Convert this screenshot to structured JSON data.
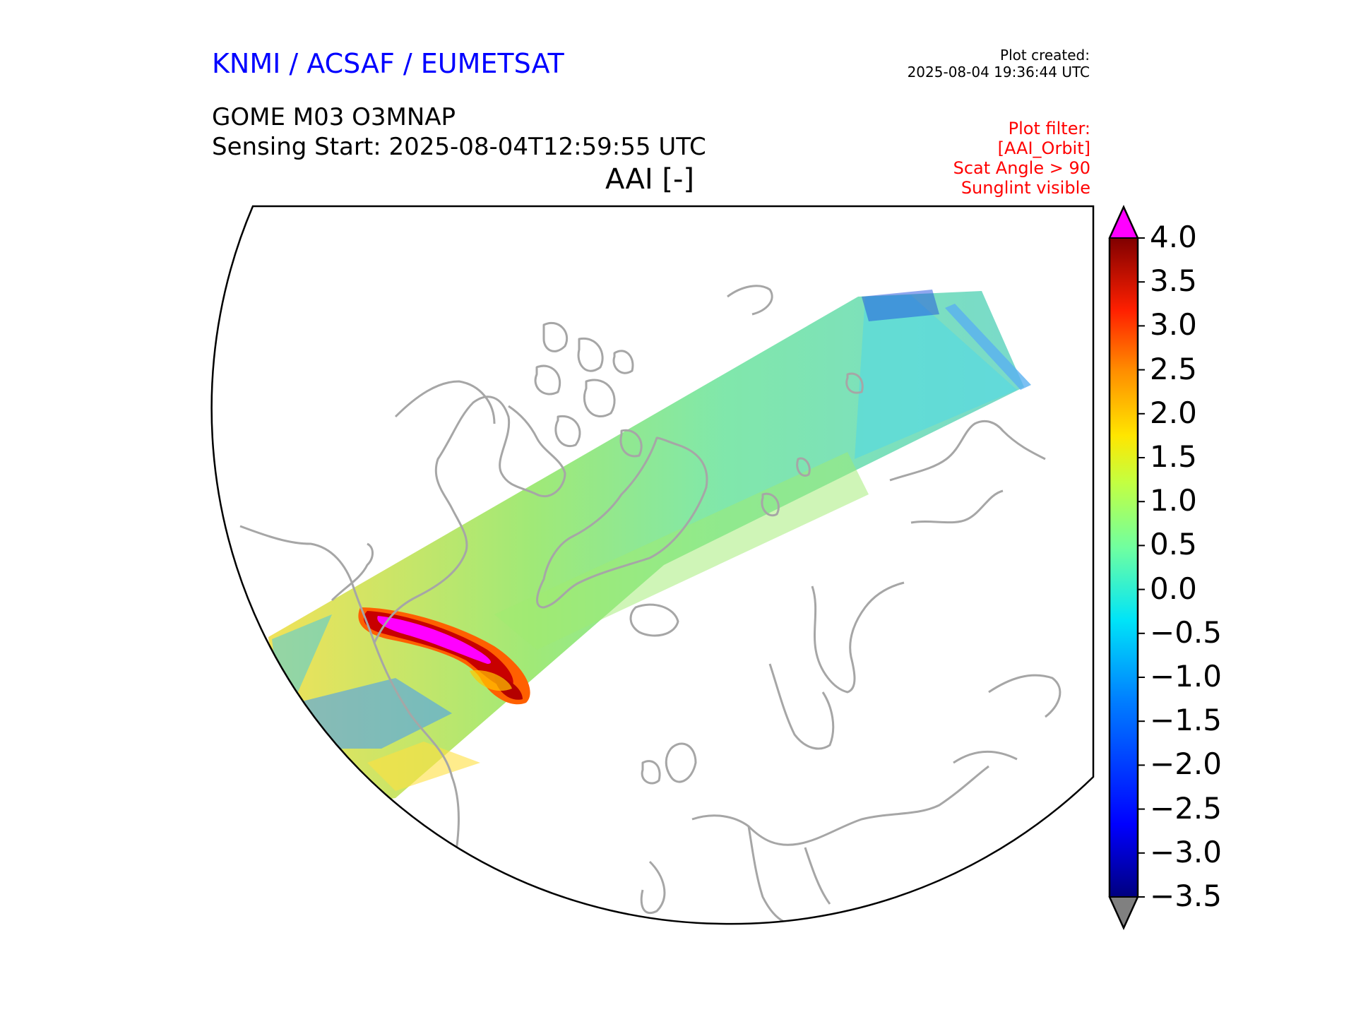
{
  "header": {
    "organization": "KNMI / ACSAF / EUMETSAT",
    "plot_created_label": "Plot created:",
    "plot_created_time": "2025-08-04 19:36:44 UTC",
    "product": "GOME M03 O3MNAP",
    "sensing_start": "Sensing Start: 2025-08-04T12:59:55 UTC",
    "variable": "AAI [-]",
    "filters": [
      "Plot filter:",
      "[AAI_Orbit]",
      "Scat Angle > 90",
      "Sunglint visible"
    ]
  },
  "colorbar": {
    "min": -3.5,
    "max": 4.0,
    "ticks": [
      4.0,
      3.5,
      3.0,
      2.5,
      2.0,
      1.5,
      1.0,
      0.5,
      0.0,
      -0.5,
      -1.0,
      -1.5,
      -2.0,
      -2.5,
      -3.0,
      -3.5
    ],
    "tick_labels": [
      "4.0",
      "3.5",
      "3.0",
      "2.5",
      "2.0",
      "1.5",
      "1.0",
      "0.5",
      "0.0",
      "−0.5",
      "−1.0",
      "−1.5",
      "−2.0",
      "−2.5",
      "−3.0",
      "−3.5"
    ],
    "over_color": "#ff00ff",
    "under_color": "#808080"
  },
  "map": {
    "projection": "north-polar stereographic",
    "coastline_color": "#a6a6a6",
    "swath": "single GOME orbit swath from North America across Greenland to Siberia",
    "smoke_plume_aai_max": 4.0
  }
}
